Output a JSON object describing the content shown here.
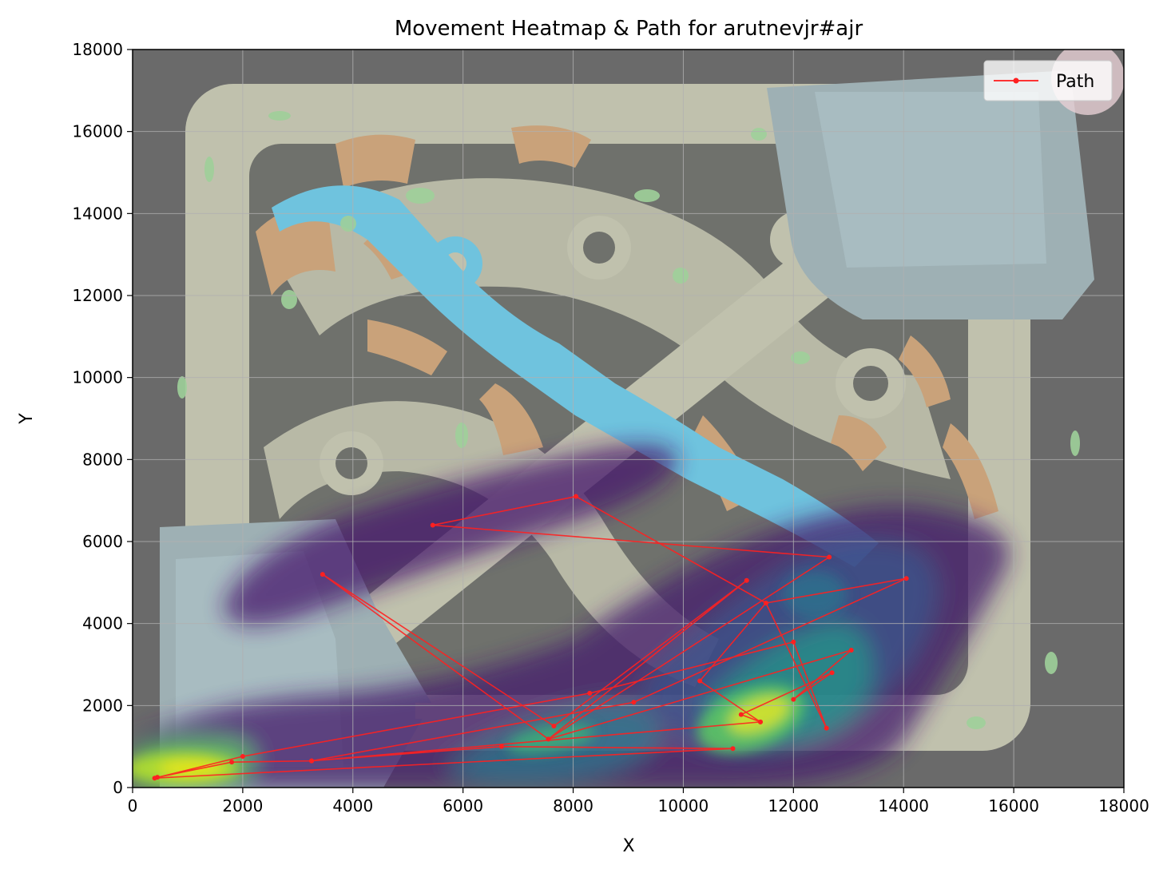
{
  "chart_data": {
    "type": "line",
    "title": "Movement Heatmap & Path for arutnevjr#ajr",
    "xlabel": "X",
    "ylabel": "Y",
    "xlim": [
      0,
      18000
    ],
    "ylim": [
      0,
      18000
    ],
    "xticks": [
      0,
      2000,
      4000,
      6000,
      8000,
      10000,
      12000,
      14000,
      16000,
      18000
    ],
    "yticks": [
      0,
      2000,
      4000,
      6000,
      8000,
      10000,
      12000,
      14000,
      16000,
      18000
    ],
    "grid": true,
    "legend": {
      "position": "top-right",
      "entries": [
        "Path"
      ]
    },
    "background": "game map image with density heatmap overlay",
    "heatmap_colormap": "viridis",
    "series": [
      {
        "name": "Path",
        "color": "#ff2020",
        "marker": "o",
        "points": [
          [
            450,
            250
          ],
          [
            1800,
            620
          ],
          [
            3250,
            650
          ],
          [
            6700,
            1000
          ],
          [
            10900,
            950
          ],
          [
            400,
            230
          ],
          [
            2000,
            760
          ],
          [
            8300,
            2300
          ],
          [
            12000,
            3550
          ],
          [
            12600,
            1450
          ],
          [
            11500,
            4500
          ],
          [
            14050,
            5100
          ],
          [
            9100,
            2080
          ],
          [
            3250,
            650
          ],
          [
            11400,
            1600
          ],
          [
            11050,
            1780
          ],
          [
            12700,
            2800
          ],
          [
            12000,
            2150
          ],
          [
            13050,
            3350
          ],
          [
            7550,
            1180
          ],
          [
            3450,
            5200
          ],
          [
            7650,
            1500
          ],
          [
            11150,
            5050
          ],
          [
            7550,
            1180
          ],
          [
            12650,
            5620
          ],
          [
            5450,
            6400
          ],
          [
            8050,
            7100
          ],
          [
            11500,
            4500
          ],
          [
            10300,
            2600
          ],
          [
            11400,
            1600
          ]
        ]
      }
    ]
  }
}
